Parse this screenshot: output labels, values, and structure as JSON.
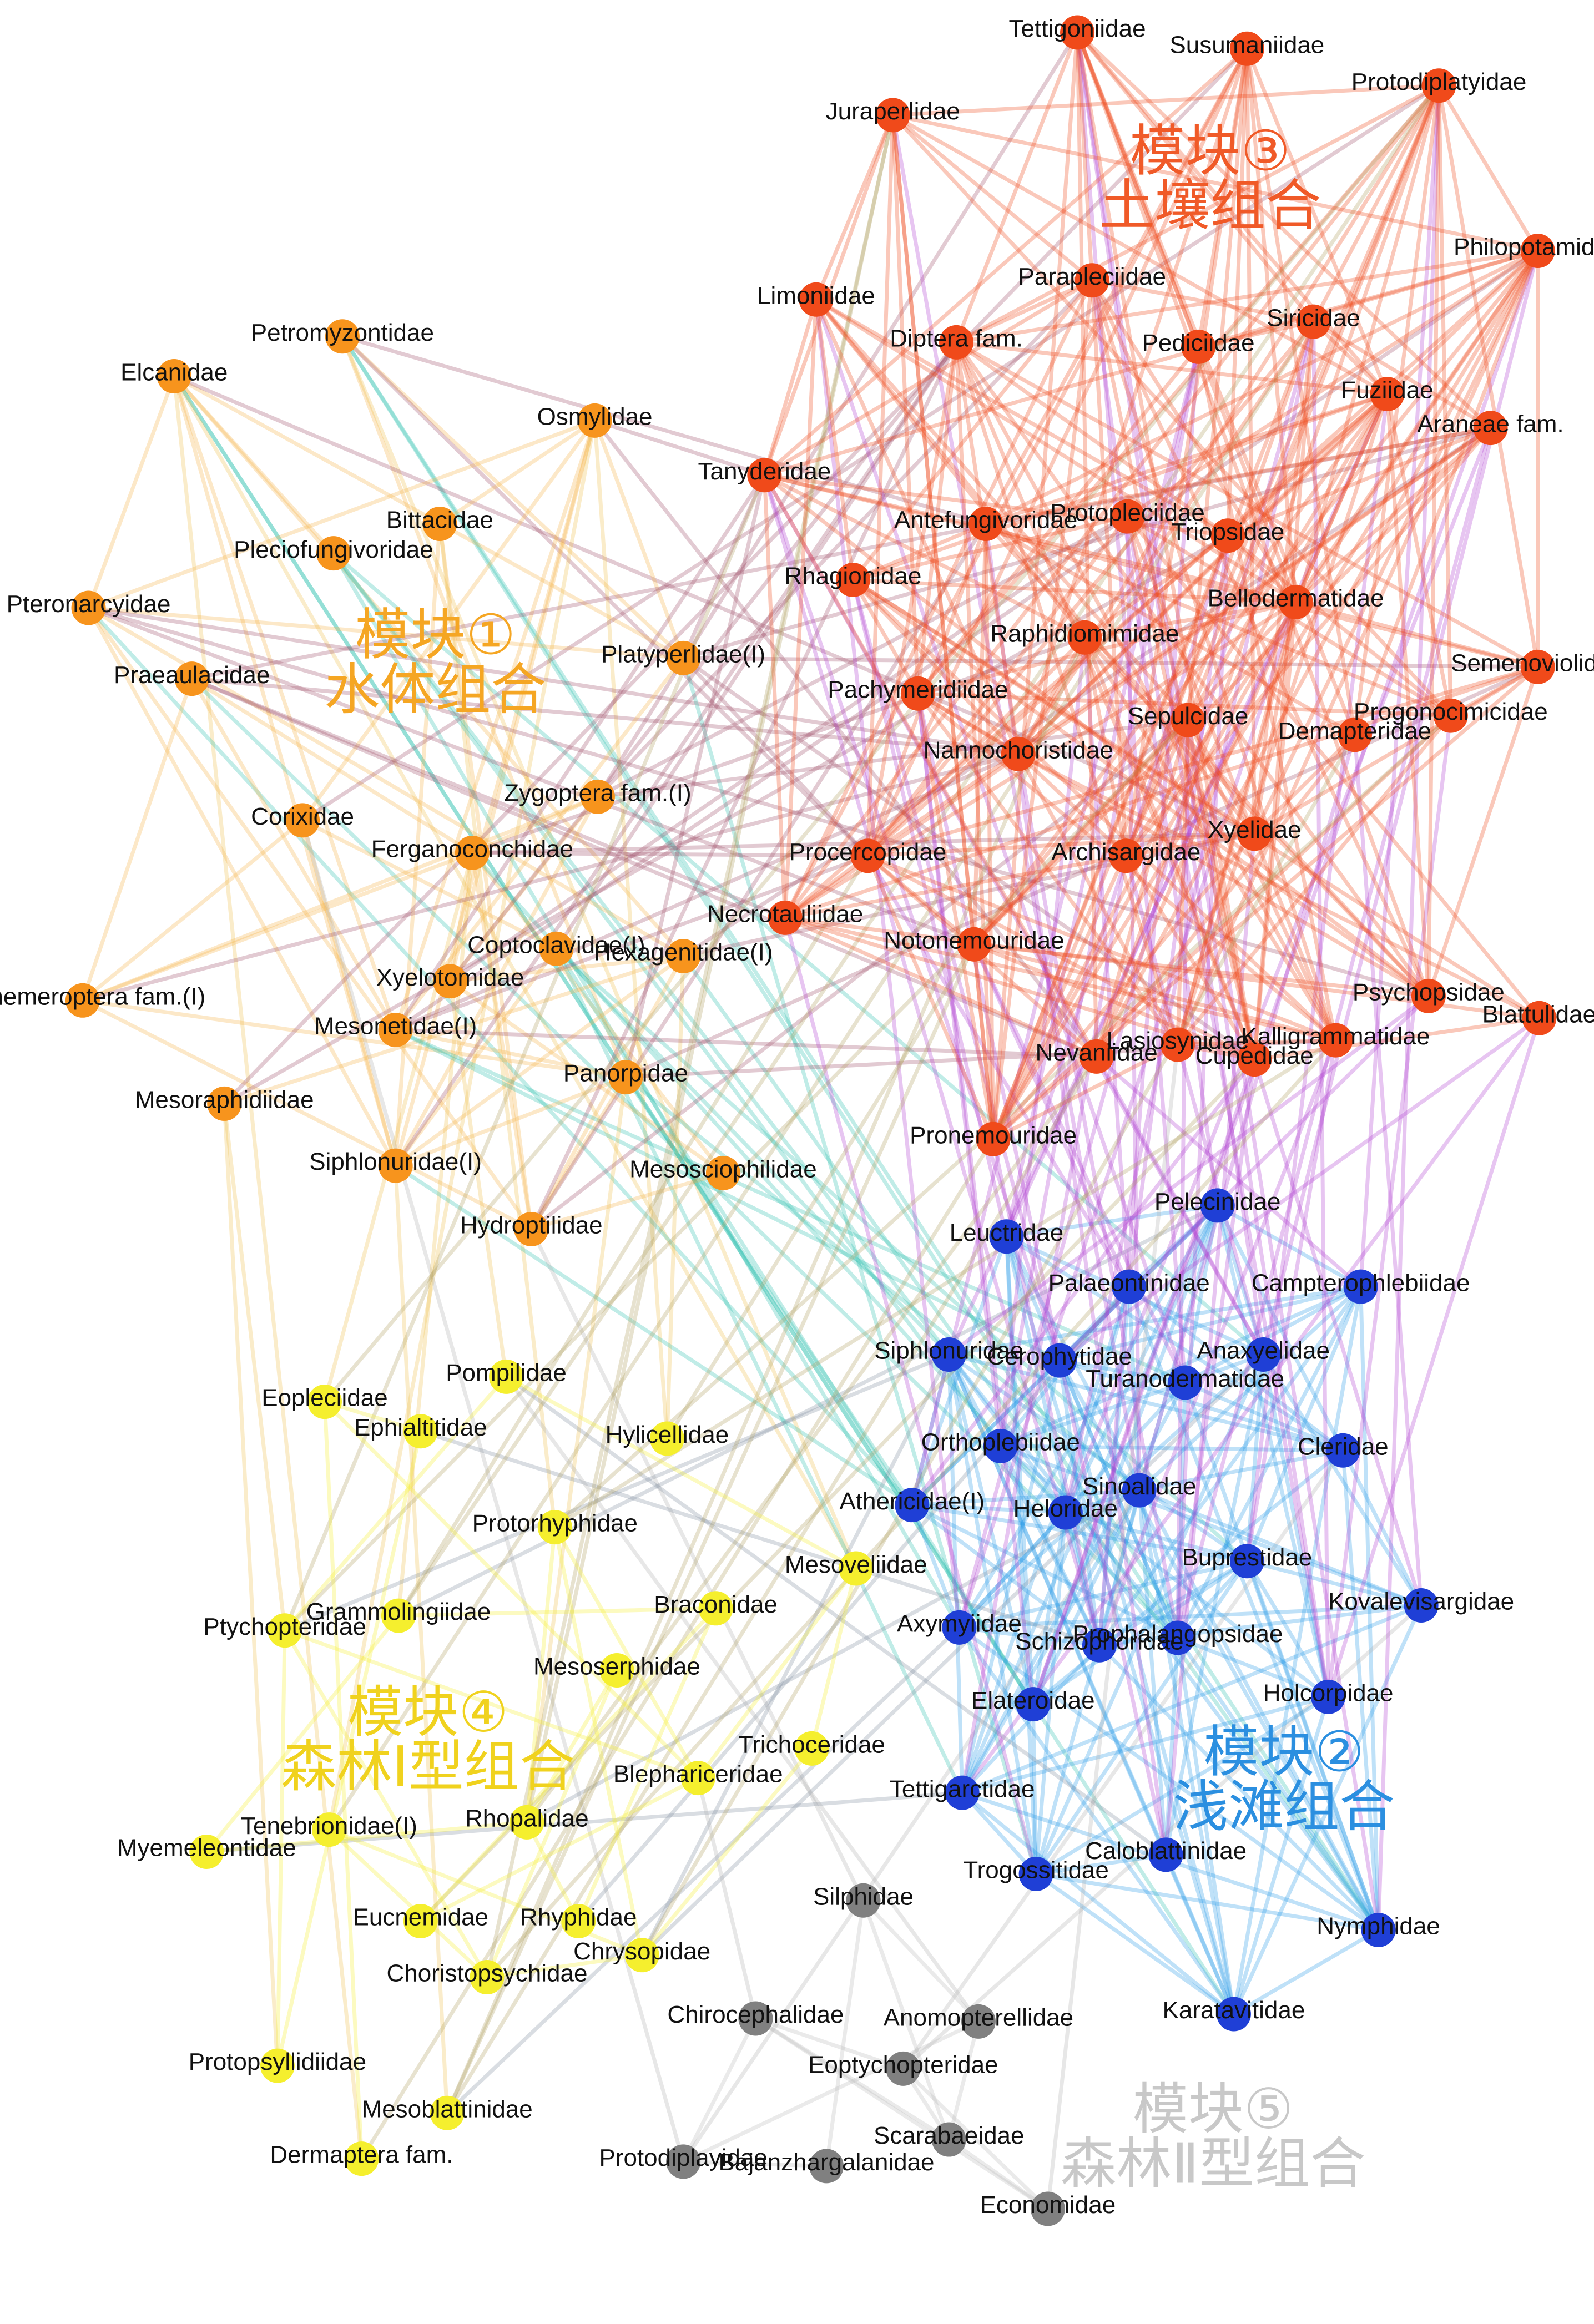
{
  "modules": [
    {
      "title": "模块①",
      "subtitle": "水体组合",
      "nodes": [
        "Petromyzontidae",
        "Elcanidae",
        "Osmylidae",
        "Bittacidae",
        "Pleciofungivoridae",
        "Pteronarcyidae",
        "Praeaulacidae",
        "Platyperlidae(I)",
        "Corixidae",
        "Zygoptera fam.(I)",
        "Ferganoconchidae",
        "Coptoclavidae(I)",
        "Hexagenitidae(I)",
        "Xyelotomidae",
        "Ephemeroptera fam.(I)",
        "Mesonetidae(I)",
        "Panorpidae",
        "Mesoraphidiidae",
        "Siphlonuridae(I)",
        "Mesosciophilidae",
        "Hydroptilidae"
      ]
    },
    {
      "title": "模块②",
      "subtitle": "浅滩组合",
      "nodes": [
        "Pelecinidae",
        "Leuctridae",
        "Palaeontinidae",
        "Campterophlebiidae",
        "Siphlonuridae",
        "Cerophytidae",
        "Anaxyelidae",
        "Turanodermatidae",
        "Orthoplebiidae",
        "Cleridae",
        "Sinoalidae",
        "Athericidae(I)",
        "Heloridae",
        "Buprestidae",
        "Kovalevisargidae",
        "Axymyiidae",
        "Prophalangopsidae",
        "Schizophoridae",
        "Holcorpidae",
        "Elateroidae",
        "Tettigarctidae",
        "Caloblattinidae",
        "Trogossitidae",
        "Nymphidae",
        "Karatavitidae"
      ]
    },
    {
      "title": "模块③",
      "subtitle": "土壤组合",
      "nodes": [
        "Tettigoniidae",
        "Susumaniidae",
        "Protodiplatyidae",
        "Juraperlidae",
        "Philopotamidae",
        "Limoniidae",
        "Parapleciidae",
        "Diptera fam.",
        "Siricidae",
        "Pediciidae",
        "Fuziidae",
        "Araneae fam.",
        "Tanyderidae",
        "Protopleciidae",
        "Antefungivoridae",
        "Triopsidae",
        "Rhagionidae",
        "Bellodermatidae",
        "Raphidiomimidae",
        "Semenoviolidae",
        "Pachymeridiidae",
        "Sepulcidae",
        "Progonocimicidae",
        "Demapteridae",
        "Nannochoristidae",
        "Xyelidae",
        "Procercopidae",
        "Archisargidae",
        "Necrotauliidae",
        "Notonemouridae",
        "Psychopsidae",
        "Blattulidae",
        "Lasiosynidae",
        "Kalligrammatidae",
        "Nevaniidae",
        "Cupedidae",
        "Pronemouridae"
      ]
    },
    {
      "title": "模块④",
      "subtitle": "森林Ⅰ型组合",
      "nodes": [
        "Eopleciidae",
        "Pompilidae",
        "Ephialtitidae",
        "Hylicellidae",
        "Protorhyphidae",
        "Mesoveliidae",
        "Grammolingiidae",
        "Braconidae",
        "Ptychopteridae",
        "Mesoserphidae",
        "Trichoceridae",
        "Blephariceridae",
        "Tenebrionidae(I)",
        "Rhopalidae",
        "Myemeleontidae",
        "Eucnemidae",
        "Rhyphidae",
        "Chrysopidae",
        "Choristopsychidae",
        "Protopsyllidiidae",
        "Mesoblattinidae",
        "Dermaptera fam."
      ]
    },
    {
      "title": "模块⑤",
      "subtitle": "森林Ⅱ型组合",
      "nodes": [
        "Silphidae",
        "Chirocephalidae",
        "Anomopterellidae",
        "Eoptychopteridae",
        "Protodiplayidae",
        "Scarabaeidae",
        "Bajanzhargalanidae",
        "Economidae"
      ]
    }
  ]
}
